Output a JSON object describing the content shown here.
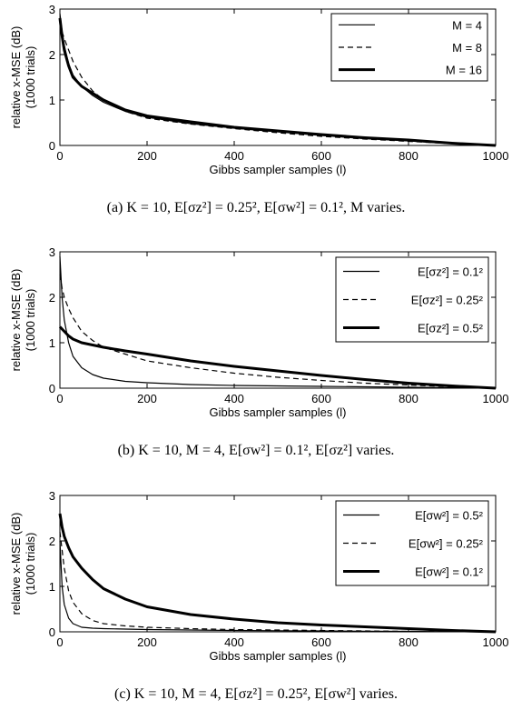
{
  "chart_data": [
    {
      "type": "line",
      "xlabel": "Gibbs sampler samples (l)",
      "ylabel": [
        "relative x-MSE (dB)",
        "(1000 trials)"
      ],
      "xlim": [
        0,
        1000
      ],
      "ylim": [
        0,
        3
      ],
      "xticks": [
        "0",
        "200",
        "400",
        "600",
        "800",
        "1000"
      ],
      "yticks": [
        "0",
        "1",
        "2",
        "3"
      ],
      "legend_position": "top-right",
      "caption": "(a) K = 10, E[σz²] = 0.25², E[σw²] = 0.1², M varies.",
      "series": [
        {
          "name": "M = 4",
          "style": "solid-thin",
          "x": [
            0,
            5,
            10,
            20,
            30,
            50,
            75,
            100,
            150,
            200,
            300,
            400,
            500,
            600,
            700,
            800,
            900,
            1000
          ],
          "y": [
            2.9,
            2.5,
            2.2,
            1.8,
            1.55,
            1.3,
            1.1,
            0.95,
            0.75,
            0.62,
            0.48,
            0.38,
            0.3,
            0.22,
            0.15,
            0.1,
            0.04,
            0.0
          ]
        },
        {
          "name": "M = 8",
          "style": "dashed",
          "x": [
            0,
            5,
            10,
            20,
            30,
            50,
            75,
            100,
            150,
            200,
            300,
            400,
            500,
            600,
            700,
            800,
            900,
            1000
          ],
          "y": [
            2.7,
            2.5,
            2.35,
            2.1,
            1.85,
            1.5,
            1.2,
            1.0,
            0.75,
            0.6,
            0.47,
            0.37,
            0.28,
            0.2,
            0.14,
            0.09,
            0.04,
            0.0
          ]
        },
        {
          "name": "M = 16",
          "style": "solid-thick",
          "x": [
            0,
            5,
            10,
            20,
            30,
            50,
            75,
            100,
            150,
            200,
            300,
            400,
            500,
            600,
            700,
            800,
            900,
            1000
          ],
          "y": [
            2.8,
            2.4,
            2.1,
            1.75,
            1.5,
            1.3,
            1.15,
            1.0,
            0.78,
            0.65,
            0.52,
            0.4,
            0.32,
            0.24,
            0.17,
            0.12,
            0.05,
            0.0
          ]
        }
      ]
    },
    {
      "type": "line",
      "xlabel": "Gibbs sampler samples (l)",
      "ylabel": [
        "relative x-MSE (dB)",
        "(1000 trials)"
      ],
      "xlim": [
        0,
        1000
      ],
      "ylim": [
        0,
        3
      ],
      "xticks": [
        "0",
        "200",
        "400",
        "600",
        "800",
        "1000"
      ],
      "yticks": [
        "0",
        "1",
        "2",
        "3"
      ],
      "legend_position": "top-right",
      "caption": "(b) K = 10, M = 4, E[σw²] = 0.1², E[σz²] varies.",
      "series": [
        {
          "name": "E[σz²] = 0.1²",
          "style": "solid-thin",
          "x": [
            0,
            5,
            10,
            20,
            30,
            50,
            75,
            100,
            150,
            200,
            300,
            400,
            500,
            600,
            700,
            800,
            900,
            1000
          ],
          "y": [
            2.9,
            2.0,
            1.5,
            1.0,
            0.7,
            0.45,
            0.3,
            0.22,
            0.15,
            0.12,
            0.08,
            0.06,
            0.05,
            0.04,
            0.03,
            0.02,
            0.01,
            0.0
          ]
        },
        {
          "name": "E[σz²] = 0.25²",
          "style": "dashed",
          "x": [
            0,
            5,
            10,
            20,
            30,
            50,
            75,
            100,
            150,
            200,
            300,
            400,
            500,
            600,
            700,
            800,
            900,
            1000
          ],
          "y": [
            2.5,
            2.2,
            2.0,
            1.75,
            1.55,
            1.25,
            1.05,
            0.9,
            0.75,
            0.6,
            0.45,
            0.33,
            0.24,
            0.17,
            0.11,
            0.07,
            0.03,
            0.0
          ]
        },
        {
          "name": "E[σz²] = 0.5²",
          "style": "solid-thick",
          "x": [
            0,
            5,
            10,
            20,
            30,
            50,
            75,
            100,
            150,
            200,
            300,
            400,
            500,
            600,
            700,
            800,
            900,
            1000
          ],
          "y": [
            1.35,
            1.3,
            1.25,
            1.15,
            1.08,
            1.0,
            0.95,
            0.9,
            0.82,
            0.75,
            0.6,
            0.48,
            0.38,
            0.28,
            0.19,
            0.11,
            0.05,
            0.0
          ]
        }
      ]
    },
    {
      "type": "line",
      "xlabel": "Gibbs sampler samples (l)",
      "ylabel": [
        "relative x-MSE (dB)",
        "(1000 trials)"
      ],
      "xlim": [
        0,
        1000
      ],
      "ylim": [
        0,
        3
      ],
      "xticks": [
        "0",
        "200",
        "400",
        "600",
        "800",
        "1000"
      ],
      "yticks": [
        "0",
        "1",
        "2",
        "3"
      ],
      "legend_position": "top-right",
      "caption": "(c) K = 10, M = 4, E[σz²] = 0.25², E[σw²] varies.",
      "series": [
        {
          "name": "E[σw²] = 0.5²",
          "style": "solid-thin",
          "x": [
            0,
            5,
            10,
            20,
            30,
            50,
            75,
            100,
            150,
            200,
            300,
            400,
            500,
            600,
            700,
            800,
            900,
            1000
          ],
          "y": [
            2.0,
            1.0,
            0.6,
            0.3,
            0.18,
            0.1,
            0.08,
            0.07,
            0.06,
            0.05,
            0.04,
            0.03,
            0.025,
            0.02,
            0.015,
            0.01,
            0.005,
            0.0
          ]
        },
        {
          "name": "E[σw²] = 0.25²",
          "style": "dashed",
          "x": [
            0,
            5,
            10,
            20,
            30,
            50,
            75,
            100,
            150,
            200,
            300,
            400,
            500,
            600,
            700,
            800,
            900,
            1000
          ],
          "y": [
            2.2,
            1.8,
            1.4,
            0.9,
            0.65,
            0.4,
            0.25,
            0.18,
            0.13,
            0.1,
            0.07,
            0.05,
            0.04,
            0.03,
            0.02,
            0.01,
            0.005,
            0.0
          ]
        },
        {
          "name": "E[σw²] = 0.1²",
          "style": "solid-thick",
          "x": [
            0,
            5,
            10,
            20,
            30,
            50,
            75,
            100,
            150,
            200,
            300,
            400,
            500,
            600,
            700,
            800,
            900,
            1000
          ],
          "y": [
            2.6,
            2.3,
            2.1,
            1.85,
            1.65,
            1.4,
            1.15,
            0.95,
            0.72,
            0.55,
            0.38,
            0.28,
            0.2,
            0.15,
            0.11,
            0.07,
            0.03,
            0.0
          ]
        }
      ]
    }
  ]
}
